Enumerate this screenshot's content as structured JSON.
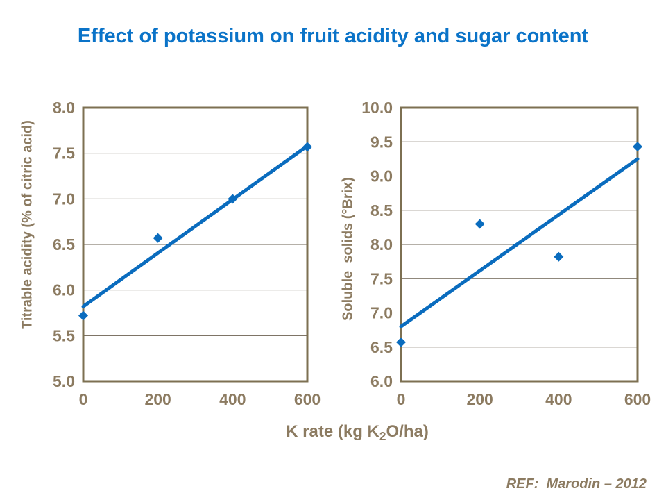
{
  "title": {
    "text": "Effect of potassium on fruit acidity and sugar content"
  },
  "x_axis_label": {
    "pre": "K rate (kg K",
    "sub": "2",
    "post": "O/ha)"
  },
  "reference": {
    "text": "REF:  Marodin – 2012"
  },
  "colors": {
    "title": "#0A73C8",
    "series": "#0A6CBE",
    "axis_text": "#8C7B61",
    "frame": "#7D7052",
    "gridline": "#6B6150",
    "background": "#FFFFFF"
  },
  "chart_data": [
    {
      "type": "scatter",
      "name": "titrable-acidity-vs-k-rate",
      "ylabel": "Titrable acidity (% of citric acid)",
      "xlabel": "K rate (kg K2O/ha)",
      "x": [
        0,
        200,
        400,
        600
      ],
      "y": [
        5.72,
        6.57,
        7.0,
        7.57
      ],
      "trendline": {
        "x0": 0,
        "y0": 5.82,
        "x1": 600,
        "y1": 7.58
      },
      "xlim": [
        0,
        600
      ],
      "ylim": [
        5.0,
        8.0
      ],
      "xticks": [
        "0",
        "200",
        "400",
        "600"
      ],
      "yticks": [
        "8.0",
        "7.5",
        "7.0",
        "6.5",
        "6.0",
        "5.5",
        "5.0"
      ],
      "grid": "horizontal",
      "legend": "none"
    },
    {
      "type": "scatter",
      "name": "soluble-solids-vs-k-rate",
      "ylabel": "Soluble  solids (°Brix)",
      "xlabel": "K rate (kg K2O/ha)",
      "x": [
        0,
        200,
        400,
        600
      ],
      "y": [
        6.57,
        8.3,
        7.82,
        9.43
      ],
      "trendline": {
        "x0": 0,
        "y0": 6.8,
        "x1": 600,
        "y1": 9.25
      },
      "xlim": [
        0,
        600
      ],
      "ylim": [
        6.0,
        10.0
      ],
      "xticks": [
        "0",
        "200",
        "400",
        "600"
      ],
      "yticks": [
        "10.0",
        "9.5",
        "9.0",
        "8.5",
        "8.0",
        "7.5",
        "7.0",
        "6.5",
        "6.0"
      ],
      "grid": "horizontal",
      "legend": "none"
    }
  ]
}
